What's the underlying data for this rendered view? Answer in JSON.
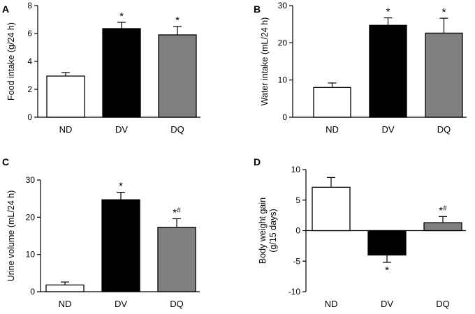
{
  "chart_data": [
    {
      "panel": "A",
      "type": "bar",
      "categories": [
        "ND",
        "DV",
        "DQ"
      ],
      "values": [
        2.95,
        6.35,
        5.9
      ],
      "errors": [
        0.25,
        0.45,
        0.6
      ],
      "colors": [
        "#ffffff",
        "#000000",
        "#808080"
      ],
      "annotations": [
        "",
        "*",
        "*"
      ],
      "ylabel": "Food intake (g/24 h)",
      "ylim": [
        0,
        8
      ],
      "yticks": [
        0,
        2,
        4,
        6,
        8
      ]
    },
    {
      "panel": "B",
      "type": "bar",
      "categories": [
        "ND",
        "DV",
        "DQ"
      ],
      "values": [
        8,
        24.7,
        22.6
      ],
      "errors": [
        1.2,
        2.0,
        4.0
      ],
      "colors": [
        "#ffffff",
        "#000000",
        "#808080"
      ],
      "annotations": [
        "",
        "*",
        "*"
      ],
      "ylabel": "Water intake (mL/24 h)",
      "ylim": [
        0,
        30
      ],
      "yticks": [
        0,
        10,
        20,
        30
      ]
    },
    {
      "panel": "C",
      "type": "bar",
      "categories": [
        "ND",
        "DV",
        "DQ"
      ],
      "values": [
        1.8,
        24.7,
        17.3
      ],
      "errors": [
        0.8,
        2.0,
        2.3
      ],
      "colors": [
        "#ffffff",
        "#000000",
        "#808080"
      ],
      "annotations": [
        "",
        "*",
        "*#"
      ],
      "ylabel": "Urine volume (mL/24 h)",
      "ylim": [
        0,
        30
      ],
      "yticks": [
        0,
        10,
        20,
        30
      ]
    },
    {
      "panel": "D",
      "type": "bar",
      "categories": [
        "ND",
        "DV",
        "DQ"
      ],
      "values": [
        7.1,
        -4.0,
        1.3
      ],
      "errors": [
        1.6,
        1.2,
        1.0
      ],
      "colors": [
        "#ffffff",
        "#000000",
        "#808080"
      ],
      "annotations": [
        "",
        "*",
        "*#"
      ],
      "ylabel": "Body weight gain",
      "ylabel2": "(g/15 days)",
      "ylim": [
        -10,
        10
      ],
      "yticks": [
        -10,
        -5,
        0,
        5,
        10
      ]
    }
  ]
}
